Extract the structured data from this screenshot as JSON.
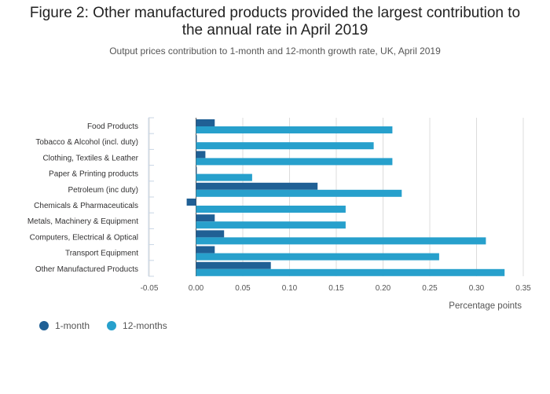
{
  "title_line1": "Figure 2: Other manufactured products provided the largest contribution to",
  "title_line2": "the annual rate in April 2019",
  "subtitle": "Output prices contribution to 1-month and 12-month growth rate, UK, April 2019",
  "chart_data": {
    "type": "bar",
    "orientation": "horizontal",
    "categories": [
      "Food Products",
      "Tobacco & Alcohol (incl. duty)",
      "Clothing, Textiles & Leather",
      "Paper & Printing products",
      "Petroleum (inc duty)",
      "Chemicals & Pharmaceuticals",
      "Metals, Machinery & Equipment",
      "Computers, Electrical & Optical",
      "Transport Equipment",
      "Other Manufactured Products"
    ],
    "series": [
      {
        "name": "1-month",
        "color": "#206095",
        "values": [
          0.02,
          0.0,
          0.01,
          0.0,
          0.13,
          -0.01,
          0.02,
          0.03,
          0.02,
          0.08
        ]
      },
      {
        "name": "12-months",
        "color": "#27a0cc",
        "values": [
          0.21,
          0.19,
          0.21,
          0.06,
          0.22,
          0.16,
          0.16,
          0.31,
          0.26,
          0.33
        ]
      }
    ],
    "xlabel": "Percentage points",
    "xlim": [
      -0.05,
      0.35
    ],
    "xticks": [
      "-0.05",
      "0.00",
      "0.05",
      "0.10",
      "0.15",
      "0.20",
      "0.25",
      "0.30",
      "0.35"
    ],
    "grid": true,
    "legend_position": "bottom-left"
  }
}
